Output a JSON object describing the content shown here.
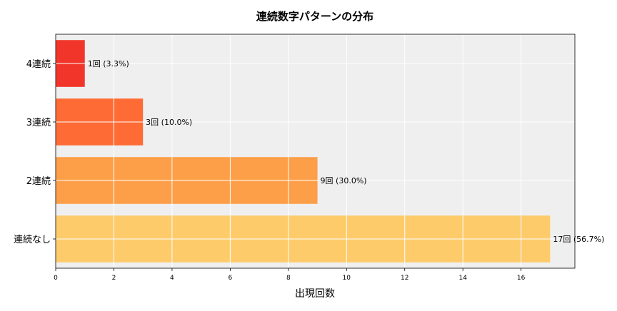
{
  "chart_data": {
    "type": "bar",
    "orientation": "horizontal",
    "title": "連続数字パターンの分布",
    "xlabel": "出現回数",
    "ylabel": "",
    "categories": [
      "連続なし",
      "2連続",
      "3連続",
      "4連続"
    ],
    "values": [
      17,
      9,
      3,
      1
    ],
    "data_labels": [
      "17回 (56.7%)",
      "9回 (30.0%)",
      "3回 (10.0%)",
      "1回 (3.3%)"
    ],
    "colors": [
      "#fecb6b",
      "#fd9f48",
      "#fe6b34",
      "#f2352a"
    ],
    "xlim": [
      0,
      17.85
    ],
    "xticks": [
      0,
      2,
      4,
      6,
      8,
      10,
      12,
      14,
      16
    ],
    "grid": true,
    "background": "#efefef"
  }
}
